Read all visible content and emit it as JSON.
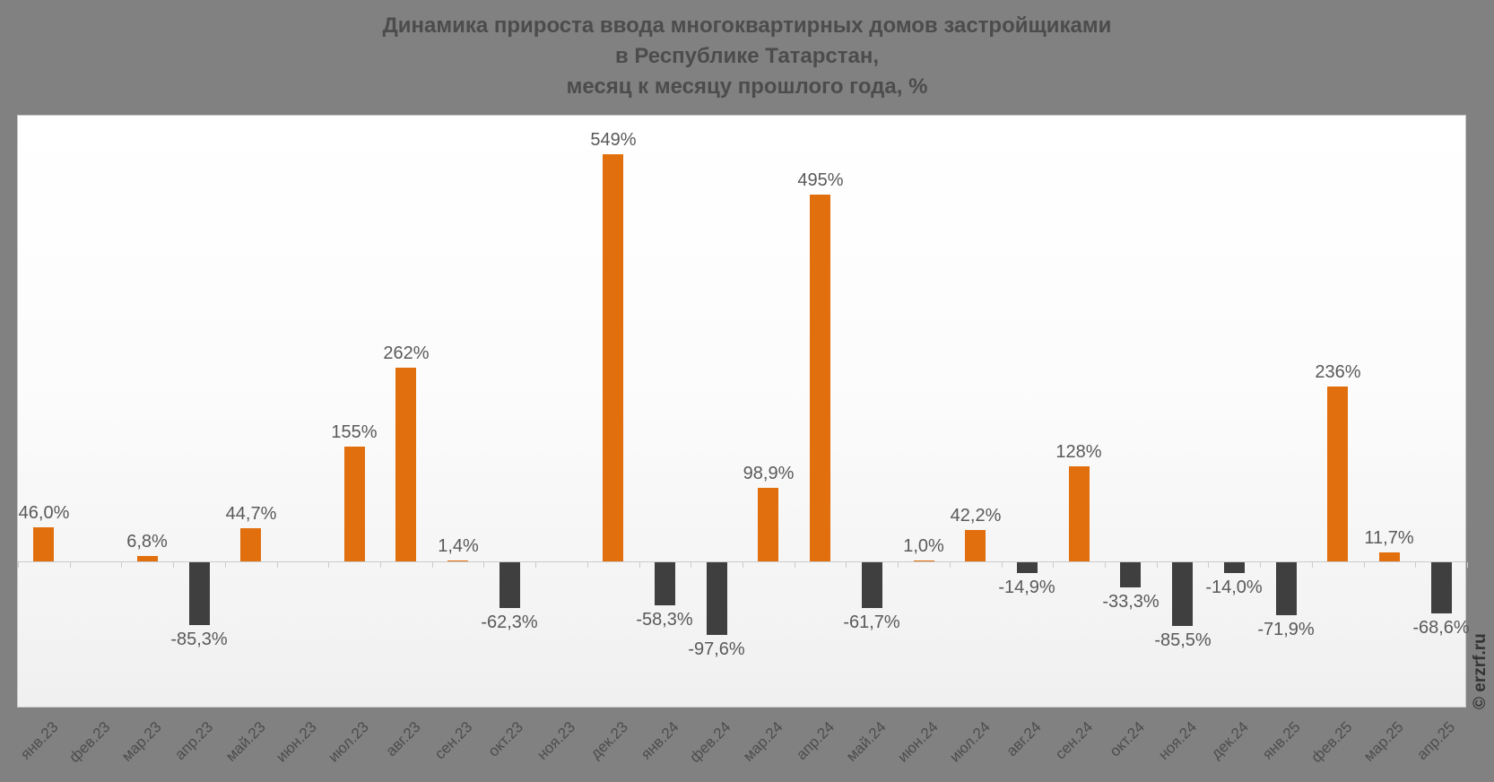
{
  "title": {
    "line1": "Динамика прироста ввода многоквартирных домов застройщиками",
    "line2": "в Республике Татарстан,",
    "line3": "месяц к месяцу прошлого года, %"
  },
  "watermark": "© erzrf.ru",
  "colors": {
    "page_background": "#818181",
    "panel_top": "#ffffff",
    "panel_bottom": "#f0f0f0",
    "axis": "#cccccc",
    "positive_bar": "#e26f0d",
    "negative_bar": "#3f3f3f",
    "title_text": "#4c4c4c",
    "value_label_text": "#595959",
    "axis_label_text": "#4d4d4d",
    "watermark_text": "#333333"
  },
  "chart_data": {
    "type": "bar",
    "title": "Динамика прироста ввода многоквартирных домов застройщиками в Республике Татарстан, месяц к месяцу прошлого года, %",
    "xlabel": "",
    "ylabel": "",
    "grid": false,
    "legend": false,
    "ylim": [
      -198,
      602
    ],
    "categories": [
      "янв.23",
      "фев.23",
      "мар.23",
      "апр.23",
      "май.23",
      "июн.23",
      "июл.23",
      "авг.23",
      "сен.23",
      "окт.23",
      "ноя.23",
      "дек.23",
      "янв.24",
      "фев.24",
      "мар.24",
      "апр.24",
      "май.24",
      "июн.24",
      "июл.24",
      "авг.24",
      "сен.24",
      "окт.24",
      "ноя.24",
      "дек.24",
      "янв.25",
      "фев.25",
      "мар.25",
      "апр.25"
    ],
    "values": [
      46.0,
      null,
      6.8,
      -85.3,
      44.7,
      null,
      155,
      262,
      1.4,
      -62.3,
      null,
      549,
      -58.3,
      -97.6,
      98.9,
      495,
      -61.7,
      1.0,
      42.2,
      -14.9,
      128,
      -33.3,
      -85.5,
      -14.0,
      -71.9,
      236,
      11.7,
      -68.6
    ],
    "labels": [
      "46,0%",
      "",
      "6,8%",
      "-85,3%",
      "44,7%",
      "",
      "155%",
      "262%",
      "1,4%",
      "-62,3%",
      "",
      "549%",
      "-58,3%",
      "-97,6%",
      "98,9%",
      "495%",
      "-61,7%",
      "1,0%",
      "42,2%",
      "-14,9%",
      "128%",
      "-33,3%",
      "-85,5%",
      "-14,0%",
      "-71,9%",
      "236%",
      "11,7%",
      "-68,6%"
    ],
    "positive_color": "#e26f0d",
    "negative_color": "#3f3f3f"
  }
}
